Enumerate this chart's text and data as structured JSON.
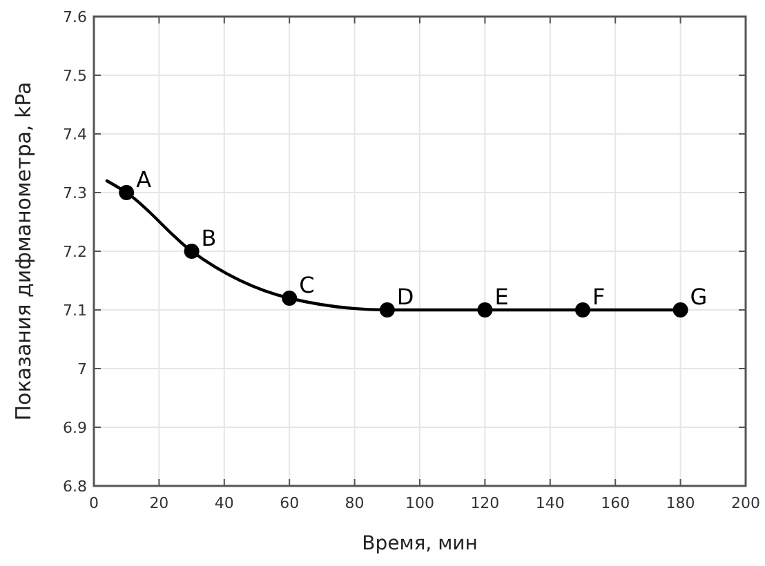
{
  "chart_data": {
    "type": "line",
    "xlabel": "Время, мин",
    "ylabel": "Показания дифманометра, kPa",
    "xlim": [
      0,
      200
    ],
    "xticks": [
      0,
      20,
      40,
      60,
      80,
      100,
      120,
      140,
      160,
      180,
      200
    ],
    "ylim": [
      6.8,
      7.6
    ],
    "yticks": [
      6.8,
      6.9,
      7,
      7.1,
      7.2,
      7.3,
      7.4,
      7.5,
      7.6
    ],
    "grid": true,
    "series": [
      {
        "color": "#000000",
        "marker": "none",
        "x": [
          4,
          10,
          30,
          60,
          90,
          120,
          150,
          180
        ],
        "values": [
          7.32,
          7.3,
          7.2,
          7.12,
          7.1,
          7.1,
          7.1,
          7.1
        ]
      },
      {
        "type": "scatter",
        "color": "#000000",
        "marker": "circle",
        "x": [
          10,
          30,
          60,
          90,
          120,
          150,
          180
        ],
        "values": [
          7.3,
          7.2,
          7.12,
          7.1,
          7.1,
          7.1,
          7.1
        ]
      }
    ],
    "annotations": [
      {
        "text": "A",
        "x": 10,
        "y": 7.3
      },
      {
        "text": "B",
        "x": 30,
        "y": 7.2
      },
      {
        "text": "C",
        "x": 60,
        "y": 7.12
      },
      {
        "text": "D",
        "x": 90,
        "y": 7.1
      },
      {
        "text": "E",
        "x": 120,
        "y": 7.1
      },
      {
        "text": "F",
        "x": 150,
        "y": 7.1
      },
      {
        "text": "G",
        "x": 180,
        "y": 7.1
      }
    ]
  }
}
